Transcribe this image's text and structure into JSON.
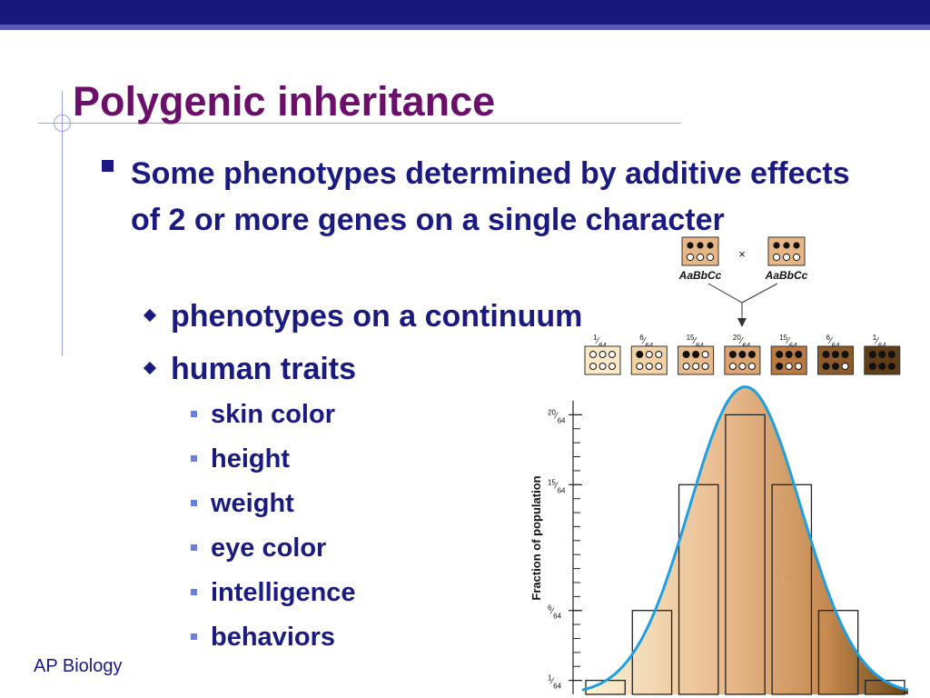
{
  "title": "Polygenic inheritance",
  "bullet1": "Some phenotypes determined by additive effects of 2 or more genes on a single character",
  "sub_bullets": [
    "phenotypes on a continuum",
    "human traits"
  ],
  "traits": [
    "skin color",
    "height",
    "weight",
    "eye color",
    "intelligence",
    "behaviors"
  ],
  "footer": "AP Biology",
  "cross": {
    "parent1": "AaBbCc",
    "parent2": "AaBbCc",
    "symbol": "×",
    "offspring": [
      {
        "fraction": "1/64",
        "dark": 0
      },
      {
        "fraction": "6/64",
        "dark": 1
      },
      {
        "fraction": "15/64",
        "dark": 2
      },
      {
        "fraction": "20/64",
        "dark": 3
      },
      {
        "fraction": "15/64",
        "dark": 4
      },
      {
        "fraction": "6/64",
        "dark": 5
      },
      {
        "fraction": "1/64",
        "dark": 6
      }
    ]
  },
  "chart_data": {
    "type": "bar",
    "ylabel": "Fraction of population",
    "categories": [
      "0",
      "1",
      "2",
      "3",
      "4",
      "5",
      "6"
    ],
    "values": [
      1,
      6,
      15,
      20,
      15,
      6,
      1
    ],
    "value_unit": "/64",
    "yticks": [
      "1/64",
      "6/64",
      "15/64",
      "20/64"
    ],
    "ylim": [
      0,
      21
    ],
    "curve": "normal distribution",
    "colors": {
      "curve": "#1ea0e0",
      "gradient_start": "#fdf3d6",
      "gradient_end": "#6b4416"
    }
  }
}
